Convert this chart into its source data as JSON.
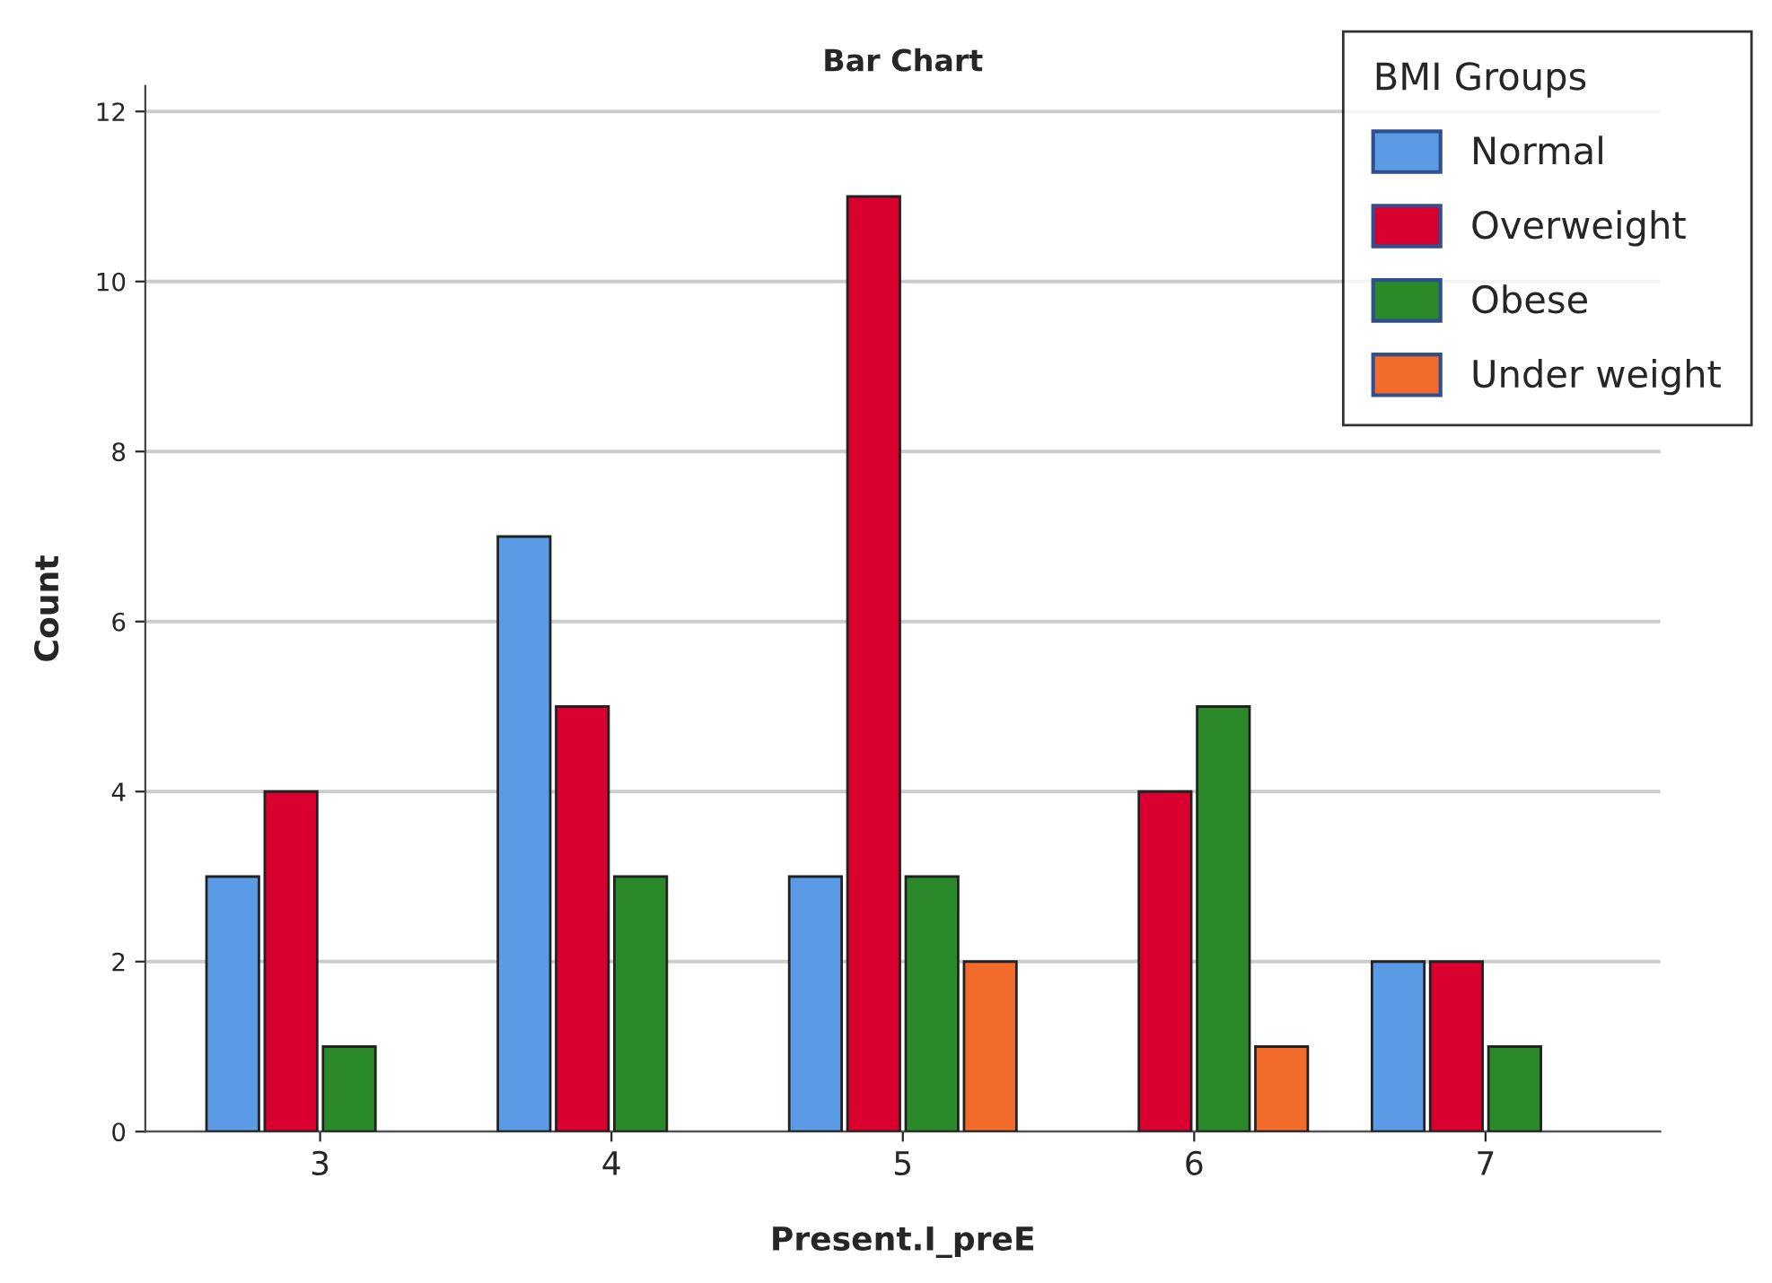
{
  "chart_data": {
    "type": "bar",
    "title": "Bar Chart",
    "xlabel": "Present.I_preE",
    "ylabel": "Count",
    "legend_title": "BMI Groups",
    "legend": "top right",
    "grid": "y",
    "categories": [
      "3",
      "4",
      "5",
      "6",
      "7"
    ],
    "ylim": [
      0,
      12.3
    ],
    "yticks": [
      0,
      2,
      4,
      6,
      8,
      10,
      12
    ],
    "series": [
      {
        "name": "Normal",
        "color": "#5b9be6",
        "values": [
          3,
          7,
          3,
          null,
          2
        ]
      },
      {
        "name": "Overweight",
        "color": "#d9002f",
        "values": [
          4,
          5,
          11,
          4,
          2
        ]
      },
      {
        "name": "Obese",
        "color": "#2a8a2a",
        "values": [
          1,
          3,
          3,
          5,
          1
        ]
      },
      {
        "name": "Under weight",
        "color": "#f26b2a",
        "values": [
          null,
          null,
          2,
          1,
          null
        ]
      }
    ]
  }
}
